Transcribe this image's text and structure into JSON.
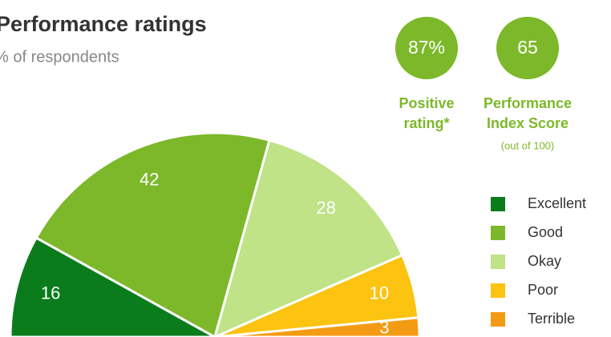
{
  "chart_data": {
    "type": "pie",
    "title": "Performance ratings",
    "subtitle": "% of respondents",
    "categories": [
      "Excellent",
      "Good",
      "Okay",
      "Poor",
      "Terrible"
    ],
    "values": [
      16,
      42,
      28,
      10,
      3
    ],
    "colors": [
      "#0a7c1c",
      "#7cb82a",
      "#bfe386",
      "#fcc310",
      "#f49b14"
    ],
    "legend": "right",
    "kpis": [
      {
        "value": "87%",
        "label": [
          "Positive",
          "rating*"
        ]
      },
      {
        "value": "65",
        "label": [
          "Performance",
          "Index Score"
        ],
        "note": "(out of 100)"
      }
    ]
  }
}
